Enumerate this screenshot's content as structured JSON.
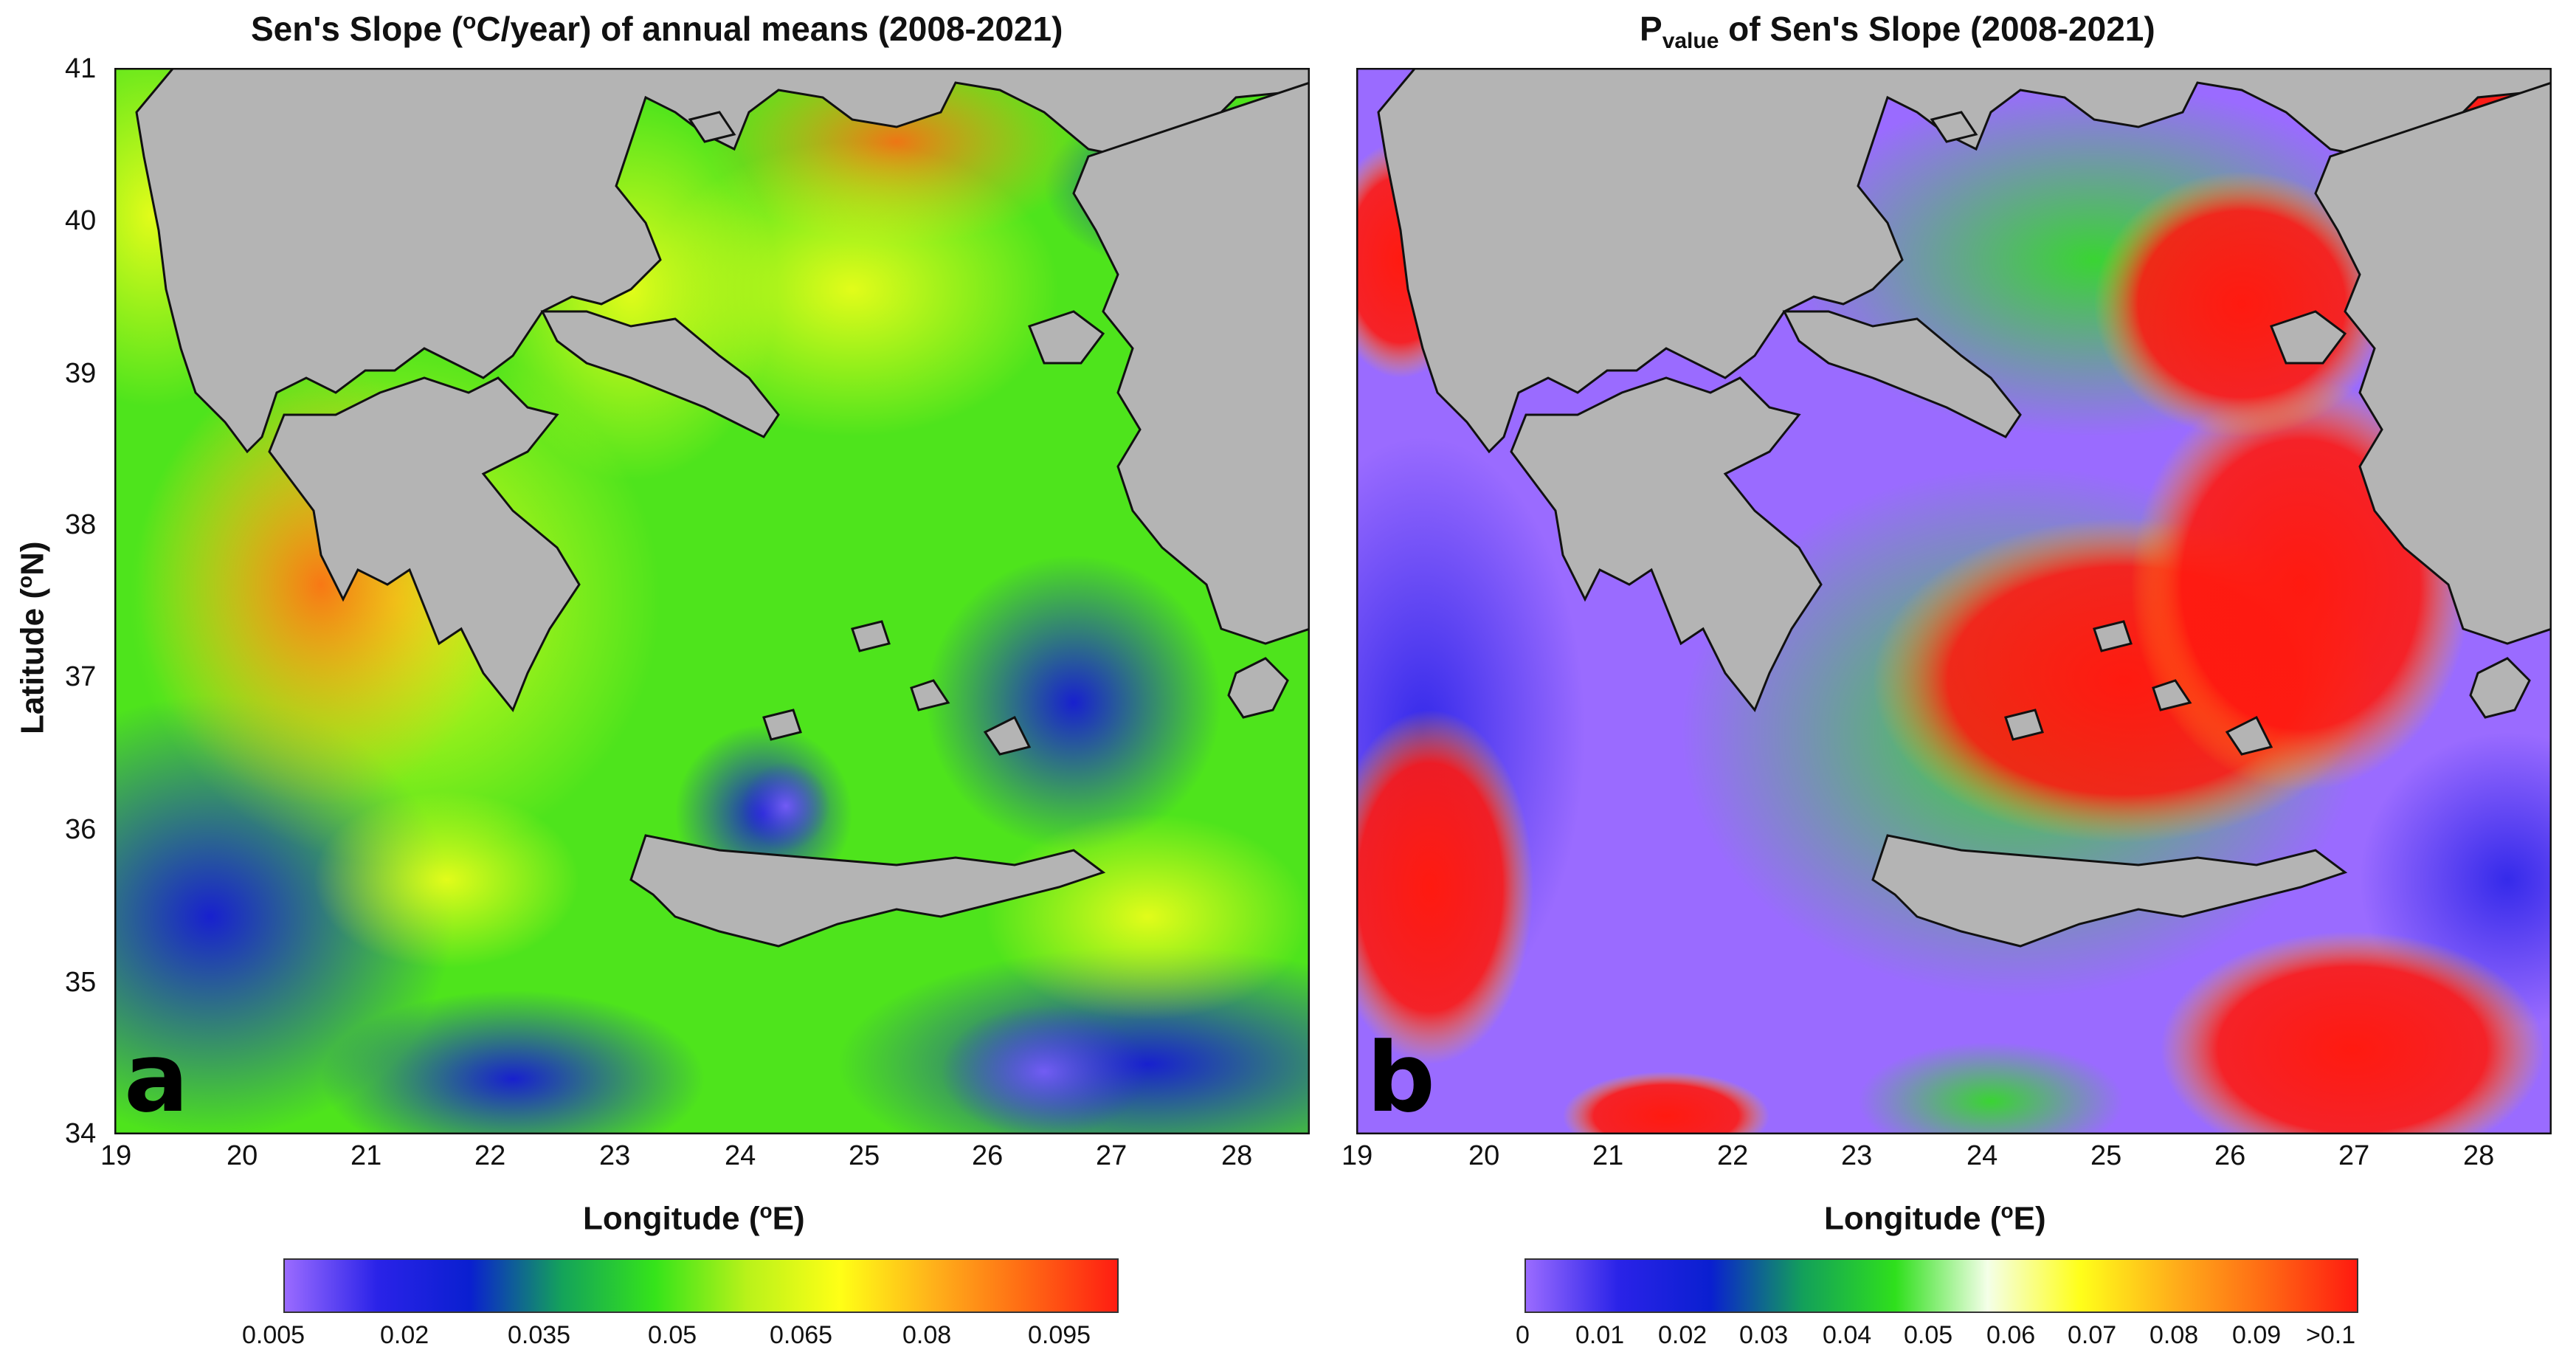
{
  "panel_a": {
    "title_main": "Sen's Slope (",
    "title_sup": "o",
    "title_rest": "C/year) of annual means (2008-2021)",
    "letter": "a",
    "colorbar_ticks": [
      "0.005",
      "0.02",
      "0.035",
      "0.05",
      "0.065",
      "0.08",
      "0.095"
    ],
    "colorbar_colors": [
      "#9a6bff",
      "#2a23e8",
      "#0a1fd0",
      "#14a35a",
      "#35e41a",
      "#b9f21a",
      "#ffff16",
      "#ffb21a",
      "#ff6a14",
      "#ff1d12"
    ]
  },
  "panel_b": {
    "title_main": "P",
    "title_sub": "value",
    "title_rest": " of Sen's Slope (2008-2021)",
    "letter": "b",
    "colorbar_ticks": [
      "0",
      "0.01",
      "0.02",
      "0.03",
      "0.04",
      "0.05",
      "0.06",
      "0.07",
      "0.08",
      "0.09",
      ">0.1"
    ],
    "colorbar_colors": [
      "#9a6bff",
      "#2a23e8",
      "#0a1fd0",
      "#13a05a",
      "#2fe01c",
      "#f4ffe8",
      "#ffff1a",
      "#ffb01a",
      "#ff6a14",
      "#ff1a10"
    ]
  },
  "axes": {
    "xlabel": "Longitude (",
    "xlabel_sup": "o",
    "xlabel_end": "E)",
    "ylabel": "Latitude (",
    "ylabel_sup": "o",
    "ylabel_end": "N)",
    "x_ticks": [
      "19",
      "20",
      "21",
      "22",
      "23",
      "24",
      "25",
      "26",
      "27",
      "28"
    ],
    "y_ticks": [
      "41",
      "40",
      "39",
      "38",
      "37",
      "36",
      "35",
      "34"
    ]
  },
  "colors": {
    "land": "#b4b4b4",
    "coast": "#111111"
  }
}
